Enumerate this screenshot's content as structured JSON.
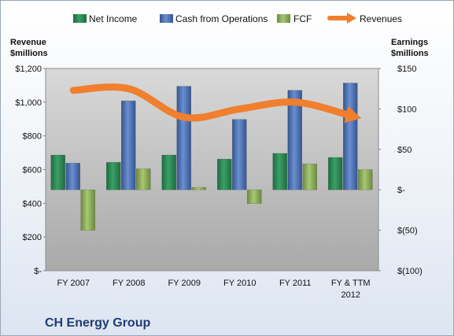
{
  "chart_data": {
    "type": "bar",
    "title": "CH Energy Group",
    "categories": [
      "FY 2007",
      "FY 2008",
      "FY 2009",
      "FY 2010",
      "FY 2011",
      "FY & TTM 2012"
    ],
    "left_axis": {
      "title_line1": "Revenue",
      "title_line2": "$millions",
      "range": [
        0,
        1200
      ],
      "ticks": [
        0,
        200,
        400,
        600,
        800,
        1000,
        1200
      ],
      "tick_labels": [
        "$-",
        "$200",
        "$400",
        "$600",
        "$800",
        "$1,000",
        "$1,200"
      ]
    },
    "right_axis": {
      "title_line1": "Earnings",
      "title_line2": "$millions",
      "range": [
        -100,
        150
      ],
      "ticks": [
        -100,
        -50,
        0,
        50,
        100,
        150
      ],
      "tick_labels": [
        "$(100)",
        "$(50)",
        "$-",
        "$50",
        "$100",
        "$150"
      ]
    },
    "series": [
      {
        "name": "Net Income",
        "type": "bar",
        "axis": "right",
        "color": "#2e8b57",
        "values": [
          43,
          34,
          43,
          38,
          45,
          40
        ]
      },
      {
        "name": "Cash from Operations",
        "type": "bar",
        "axis": "right",
        "color": "#4f73b6",
        "values": [
          33,
          110,
          128,
          87,
          123,
          132
        ]
      },
      {
        "name": "FCF",
        "type": "bar",
        "axis": "right",
        "color": "#8fb15a",
        "values": [
          -50,
          26,
          3,
          -17,
          32,
          25
        ]
      },
      {
        "name": "Revenues",
        "type": "line",
        "axis": "left",
        "color": "#f07f2e",
        "values": [
          1070,
          1080,
          910,
          960,
          1000,
          920
        ]
      }
    ],
    "grid": false,
    "legend_position": "top"
  }
}
